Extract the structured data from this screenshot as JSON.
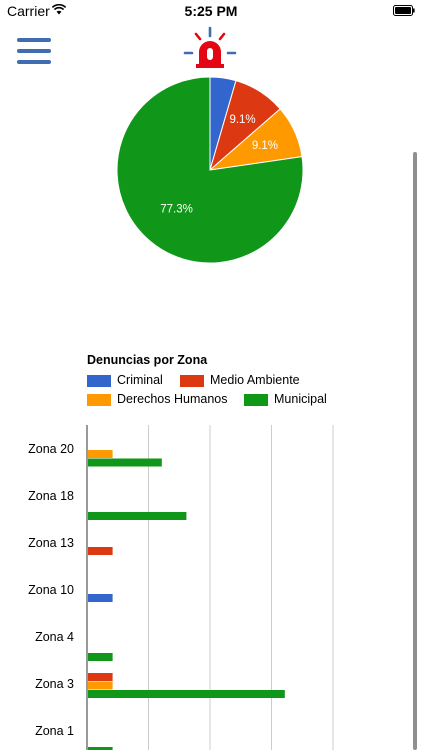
{
  "status_bar": {
    "carrier": "Carrier",
    "time": "5:25 PM"
  },
  "colors": {
    "Criminal": "#3366cc",
    "Medio Ambiente": "#dc3912",
    "Derechos Humanos": "#ff9900",
    "Municipal": "#109618",
    "menu": "#3f6db0",
    "alarm": "#e30613"
  },
  "icons": {
    "menu": "hamburger-menu-icon",
    "alarm": "alarm-siren-icon",
    "wifi": "wifi-icon",
    "battery": "battery-icon"
  },
  "pie_chart": {
    "type": "pie",
    "slices": [
      {
        "name": "Criminal",
        "value": 4.5,
        "label": ""
      },
      {
        "name": "Medio Ambiente",
        "value": 9.1,
        "label": "9.1%"
      },
      {
        "name": "Derechos Humanos",
        "value": 9.1,
        "label": "9.1%"
      },
      {
        "name": "Municipal",
        "value": 77.3,
        "label": "77.3%"
      }
    ]
  },
  "bar_chart": {
    "title": "Denuncias por Zona",
    "legend": [
      "Criminal",
      "Medio Ambiente",
      "Derechos Humanos",
      "Municipal"
    ],
    "categories": [
      "Zona 20",
      "Zona 18",
      "Zona 13",
      "Zona 10",
      "Zona 4",
      "Zona 3",
      "Zona 1"
    ]
  },
  "chart_data": [
    {
      "type": "pie",
      "categories": [
        "Criminal",
        "Medio Ambiente",
        "Derechos Humanos",
        "Municipal"
      ],
      "values": [
        4.5,
        9.1,
        9.1,
        77.3
      ]
    },
    {
      "type": "bar",
      "title": "Denuncias por Zona",
      "orientation": "horizontal",
      "categories": [
        "Zona 20",
        "Zona 18",
        "Zona 13",
        "Zona 10",
        "Zona 4",
        "Zona 3",
        "Zona 1"
      ],
      "series": [
        {
          "name": "Criminal",
          "values": [
            0,
            0,
            0,
            1,
            0,
            0,
            0
          ]
        },
        {
          "name": "Medio Ambiente",
          "values": [
            0,
            0,
            1,
            0,
            0,
            1,
            0
          ]
        },
        {
          "name": "Derechos Humanos",
          "values": [
            1,
            0,
            0,
            0,
            0,
            1,
            0
          ]
        },
        {
          "name": "Municipal",
          "values": [
            3,
            4,
            0,
            0,
            1,
            8,
            1
          ]
        }
      ],
      "xlim": [
        0,
        10
      ],
      "grid": true,
      "legend_position": "top"
    }
  ]
}
